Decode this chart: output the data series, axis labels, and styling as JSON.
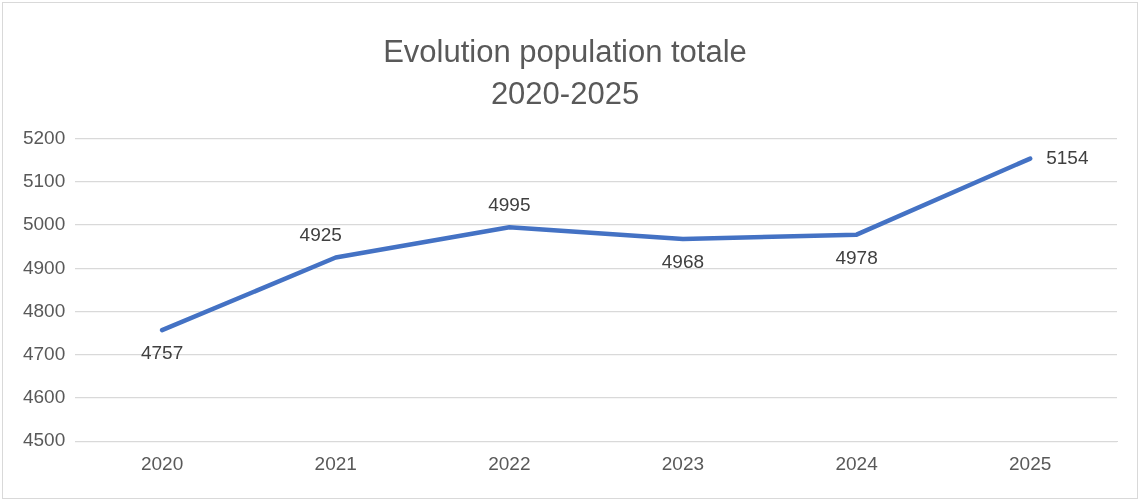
{
  "chart_data": {
    "type": "line",
    "title": [
      "Evolution population totale",
      "2020-2025"
    ],
    "categories": [
      "2020",
      "2021",
      "2022",
      "2023",
      "2024",
      "2025"
    ],
    "series": [
      {
        "color": "#4472c4",
        "values": [
          4757,
          4925,
          4995,
          4968,
          4978,
          5154
        ]
      }
    ],
    "ylim": [
      4500,
      5200
    ],
    "yticks": [
      4500,
      4600,
      4700,
      4800,
      4900,
      5000,
      5100,
      5200
    ],
    "grid": "y",
    "legend": false,
    "marker": "none",
    "data_labels": true
  }
}
